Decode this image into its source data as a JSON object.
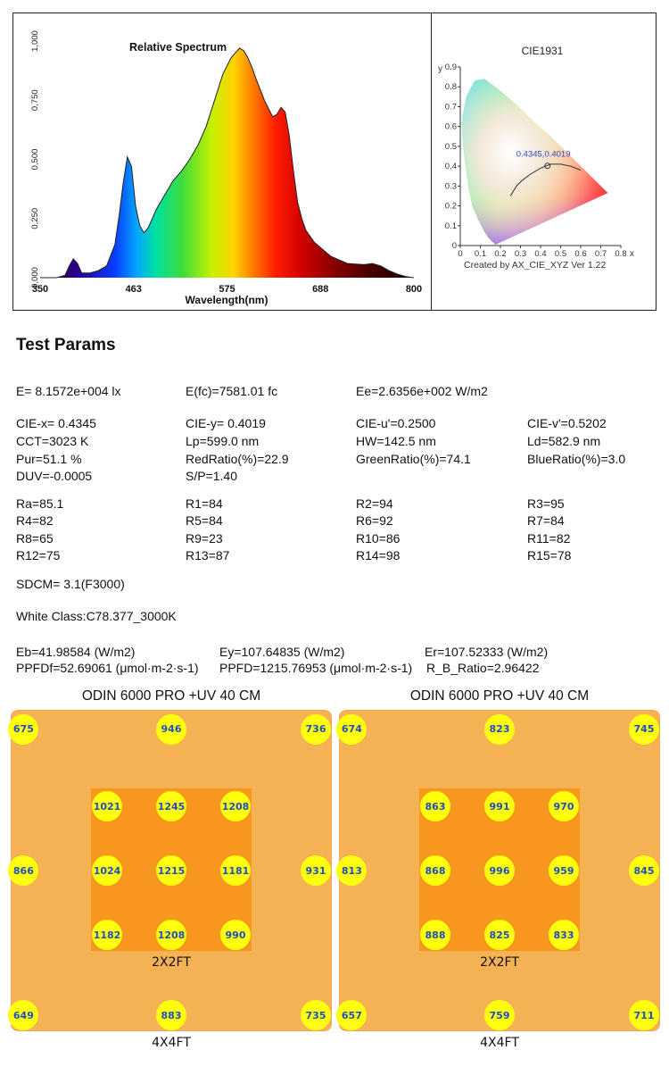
{
  "chart_data": [
    {
      "type": "area",
      "title": "Relative Spectrum",
      "xlabel": "Wavelength(nm)",
      "ylabel": "",
      "xlim": [
        350,
        800
      ],
      "ylim": [
        0,
        1
      ],
      "x_ticks": [
        "350",
        "463",
        "575",
        "688",
        "800"
      ],
      "y_ticks": [
        "0,000",
        "0,250",
        "0,500",
        "0,750",
        "1,000"
      ],
      "grid": false,
      "series": [
        {
          "x": [
            350,
            370,
            380,
            385,
            390,
            395,
            400,
            410,
            420,
            430,
            440,
            445,
            450,
            455,
            460,
            465,
            470,
            475,
            480,
            485,
            490,
            500,
            510,
            520,
            530,
            540,
            550,
            560,
            570,
            580,
            590,
            595,
            600,
            605,
            610,
            620,
            630,
            635,
            640,
            645,
            650,
            655,
            660,
            665,
            670,
            680,
            690,
            700,
            720,
            740,
            750,
            760,
            770,
            780,
            790,
            800
          ],
          "y": [
            0.0,
            0.0,
            0.01,
            0.05,
            0.08,
            0.06,
            0.02,
            0.02,
            0.03,
            0.05,
            0.14,
            0.26,
            0.4,
            0.51,
            0.47,
            0.3,
            0.22,
            0.19,
            0.21,
            0.25,
            0.29,
            0.35,
            0.41,
            0.45,
            0.5,
            0.56,
            0.64,
            0.75,
            0.86,
            0.93,
            0.97,
            0.96,
            0.93,
            0.89,
            0.84,
            0.75,
            0.68,
            0.69,
            0.72,
            0.7,
            0.6,
            0.45,
            0.32,
            0.25,
            0.2,
            0.15,
            0.12,
            0.09,
            0.06,
            0.055,
            0.06,
            0.05,
            0.03,
            0.015,
            0.005,
            0.0
          ]
        }
      ]
    },
    {
      "type": "scatter",
      "title": "CIE1931",
      "xlabel": "x",
      "ylabel": "y",
      "xlim": [
        0,
        0.8
      ],
      "ylim": [
        0,
        0.9
      ],
      "x_ticks": [
        "0",
        "0.1",
        "0.2",
        "0.3",
        "0.4",
        "0.5",
        "0.6",
        "0.7",
        "0.8"
      ],
      "y_ticks": [
        "0",
        "0.1",
        "0.2",
        "0.3",
        "0.4",
        "0.5",
        "0.6",
        "0.7",
        "0.8",
        "0.9"
      ],
      "point": {
        "x": 0.4345,
        "y": 0.4019,
        "label": "0.4345,0.4019"
      },
      "footer": "Created by AX_CIE_XYZ Ver 1.22"
    }
  ],
  "params": {
    "title": "Test Params",
    "E": "E=  8.1572e+004 lx",
    "Efc": "E(fc)=7581.01 fc",
    "Ee": "Ee=2.6356e+002 W/m2",
    "ciex": "CIE-x= 0.4345",
    "ciey": "CIE-y= 0.4019",
    "cieu": "CIE-u'=0.2500",
    "ciev": "CIE-v'=0.5202",
    "cct": "CCT=3023 K",
    "lp": "Lp=599.0 nm",
    "hw": "HW=142.5 nm",
    "ld": "Ld=582.9 nm",
    "pur": "Pur=51.1 %",
    "red": "RedRatio(%)=22.9",
    "green": "GreenRatio(%)=74.1",
    "blue": "BlueRatio(%)=3.0",
    "duv": "DUV=-0.0005",
    "sp": "S/P=1.40",
    "ra": "Ra=85.1",
    "r1": "R1=84",
    "r2": "R2=94",
    "r3": "R3=95",
    "r4": "R4=82",
    "r5": "R5=84",
    "r6": "R6=92",
    "r7": "R7=84",
    "r8": "R8=65",
    "r9": "R9=23",
    "r10": "R10=86",
    "r11": "R11=82",
    "r12": "R12=75",
    "r13": "R13=87",
    "r14": "R14=98",
    "r15": "R15=78",
    "sdcm": "SDCM= 3.1(F3000)",
    "white": "White Class:C78.377_3000K",
    "eb": "Eb=41.98584 (W/m2)",
    "ey": "Ey=107.64835 (W/m2)",
    "er": "Er=107.52333 (W/m2)",
    "ppfdf": "PPFDf=52.69061 (μmol·m-2·s-1)",
    "ppfd": "PPFD=1215.76953 (μmol·m-2·s-1)",
    "rb": "R_B_Ratio=2.96422"
  },
  "heatmaps": [
    {
      "title": "ODIN 6000 PRO +UV 40 CM",
      "inner_label": "2X2FT",
      "outer_label": "4X4FT",
      "outer": [
        "675",
        "946",
        "736",
        "866",
        "931",
        "649",
        "883",
        "735"
      ],
      "inner": [
        "1021",
        "1245",
        "1208",
        "1024",
        "1215",
        "1181",
        "1182",
        "1208",
        "990"
      ]
    },
    {
      "title": "ODIN 6000 PRO +UV 40 CM",
      "inner_label": "2X2FT",
      "outer_label": "4X4FT",
      "outer": [
        "674",
        "823",
        "745",
        "813",
        "845",
        "657",
        "759",
        "711"
      ],
      "inner": [
        "863",
        "991",
        "970",
        "868",
        "996",
        "959",
        "888",
        "825",
        "833"
      ]
    }
  ]
}
